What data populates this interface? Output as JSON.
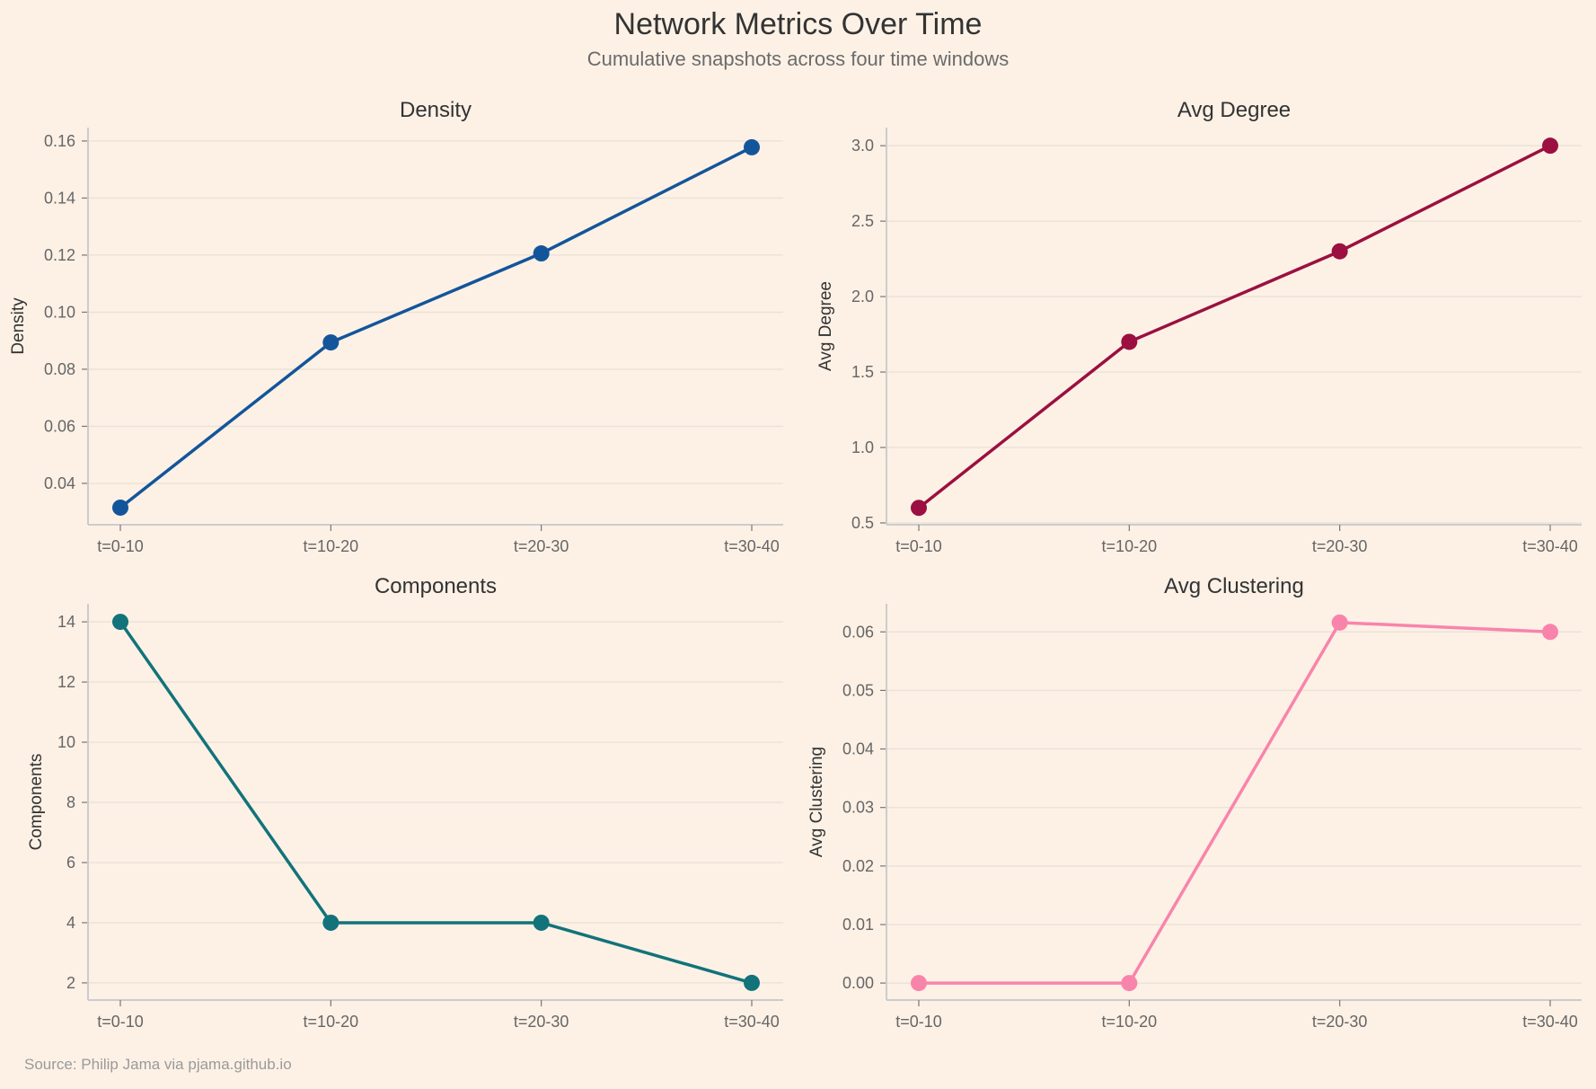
{
  "figure": {
    "title": "Network Metrics Over Time",
    "subtitle": "Cumulative snapshots across four time windows",
    "source": "Source: Philip Jama via pjama.github.io",
    "background": "#fdf1e6",
    "grid_color": "#ebe2d8",
    "spine_color": "#cccccc"
  },
  "chart_data": [
    {
      "type": "line",
      "title": "Density",
      "xlabel": "",
      "ylabel": "Density",
      "categories": [
        "t=0-10",
        "t=10-20",
        "t=20-30",
        "t=30-40"
      ],
      "values": [
        0.0315,
        0.0894,
        0.1206,
        0.1578
      ],
      "color": "#13559a",
      "yticks": [
        0.04,
        0.06,
        0.08,
        0.1,
        0.12,
        0.14,
        0.16
      ],
      "ytick_labels": [
        "0.04",
        "0.06",
        "0.08",
        "0.10",
        "0.12",
        "0.14",
        "0.16"
      ],
      "ylim": [
        0.0255,
        0.1647
      ],
      "grid": true
    },
    {
      "type": "line",
      "title": "Avg Degree",
      "xlabel": "",
      "ylabel": "Avg Degree",
      "categories": [
        "t=0-10",
        "t=10-20",
        "t=20-30",
        "t=30-40"
      ],
      "values": [
        0.6,
        1.7,
        2.3,
        3.0
      ],
      "color": "#9b1040",
      "yticks": [
        0.5,
        1.0,
        1.5,
        2.0,
        2.5,
        3.0
      ],
      "ytick_labels": [
        "0.5",
        "1.0",
        "1.5",
        "2.0",
        "2.5",
        "3.0"
      ],
      "ylim": [
        0.488,
        3.12
      ],
      "grid": true
    },
    {
      "type": "line",
      "title": "Components",
      "xlabel": "",
      "ylabel": "Components",
      "categories": [
        "t=0-10",
        "t=10-20",
        "t=20-30",
        "t=30-40"
      ],
      "values": [
        14,
        4,
        4,
        2
      ],
      "color": "#12737a",
      "yticks": [
        2,
        4,
        6,
        8,
        10,
        12,
        14
      ],
      "ytick_labels": [
        "2",
        "4",
        "6",
        "8",
        "10",
        "12",
        "14"
      ],
      "ylim": [
        1.43,
        14.6
      ],
      "grid": true
    },
    {
      "type": "line",
      "title": "Avg Clustering",
      "xlabel": "",
      "ylabel": "Avg Clustering",
      "categories": [
        "t=0-10",
        "t=10-20",
        "t=20-30",
        "t=30-40"
      ],
      "values": [
        0.0,
        0.0,
        0.0616,
        0.06
      ],
      "color": "#f984ab",
      "yticks": [
        0.0,
        0.01,
        0.02,
        0.03,
        0.04,
        0.05,
        0.06
      ],
      "ytick_labels": [
        "0.00",
        "0.01",
        "0.02",
        "0.03",
        "0.04",
        "0.05",
        "0.06"
      ],
      "ylim": [
        -0.0029,
        0.0648
      ],
      "grid": true
    }
  ]
}
